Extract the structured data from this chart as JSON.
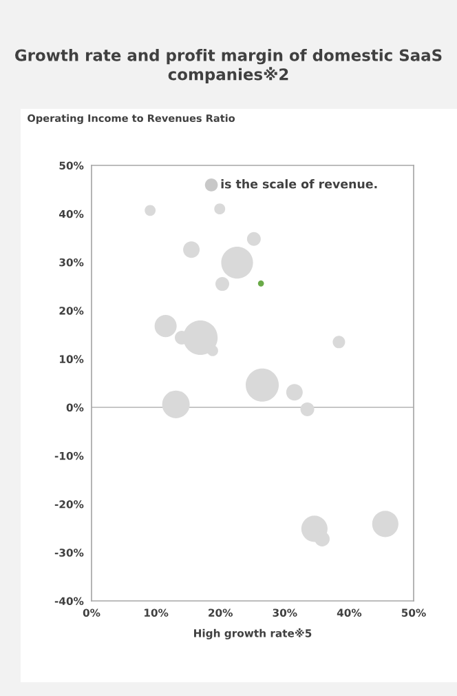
{
  "chart_data": {
    "type": "bubble",
    "title": "Growth rate and profit margin of domestic SaaS companies※2",
    "xlabel": "High growth rate※5",
    "ylabel": "Operating Income to Revenues Ratio",
    "annotations": [
      "is the scale of revenue."
    ],
    "series": [
      {
        "color": "#d9d9d9",
        "x": [
          9.1,
          19.9,
          15.5,
          25.2,
          22.6,
          20.3,
          11.5,
          14.0,
          16.9,
          18.8,
          38.4,
          26.5,
          31.5,
          33.5,
          13.1,
          34.6,
          35.8,
          45.6
        ],
        "values": [
          40.7,
          41.0,
          32.6,
          34.8,
          29.9,
          25.5,
          16.8,
          14.4,
          14.4,
          11.7,
          13.5,
          4.6,
          3.1,
          -0.4,
          0.6,
          -25.1,
          -27.2,
          -24.1
        ],
        "sizes": [
          0.1,
          0.1,
          0.23,
          0.16,
          0.85,
          0.16,
          0.41,
          0.16,
          1,
          0.1,
          0.13,
          0.92,
          0.23,
          0.16,
          0.64,
          0.58,
          0.19,
          0.58
        ]
      },
      {
        "color": "#6aaa48",
        "x": [
          26.3
        ],
        "values": [
          25.6
        ],
        "sizes": [
          0.03
        ]
      }
    ],
    "xlim": [
      0,
      50
    ],
    "xticks": [
      {
        "value": 0,
        "label": "0%"
      },
      {
        "value": 10,
        "label": "10%"
      },
      {
        "value": 20,
        "label": "20%"
      },
      {
        "value": 30,
        "label": "30%"
      },
      {
        "value": 40,
        "label": "40%"
      },
      {
        "value": 50,
        "label": "50%"
      }
    ],
    "ylim": [
      -40,
      50
    ],
    "yticks": [
      {
        "value": -40,
        "label": "-40%"
      },
      {
        "value": -30,
        "label": "-30%"
      },
      {
        "value": -20,
        "label": "-20%"
      },
      {
        "value": -10,
        "label": "-10%"
      },
      {
        "value": 0,
        "label": "0%"
      },
      {
        "value": 10,
        "label": "10%"
      },
      {
        "value": 20,
        "label": "20%"
      },
      {
        "value": 30,
        "label": "30%"
      },
      {
        "value": 40,
        "label": "40%"
      },
      {
        "value": 50,
        "label": "50%"
      }
    ],
    "ref_lines": [
      {
        "axis": "y",
        "value": 0,
        "color": "#bfbfbf"
      }
    ],
    "grid": false
  }
}
